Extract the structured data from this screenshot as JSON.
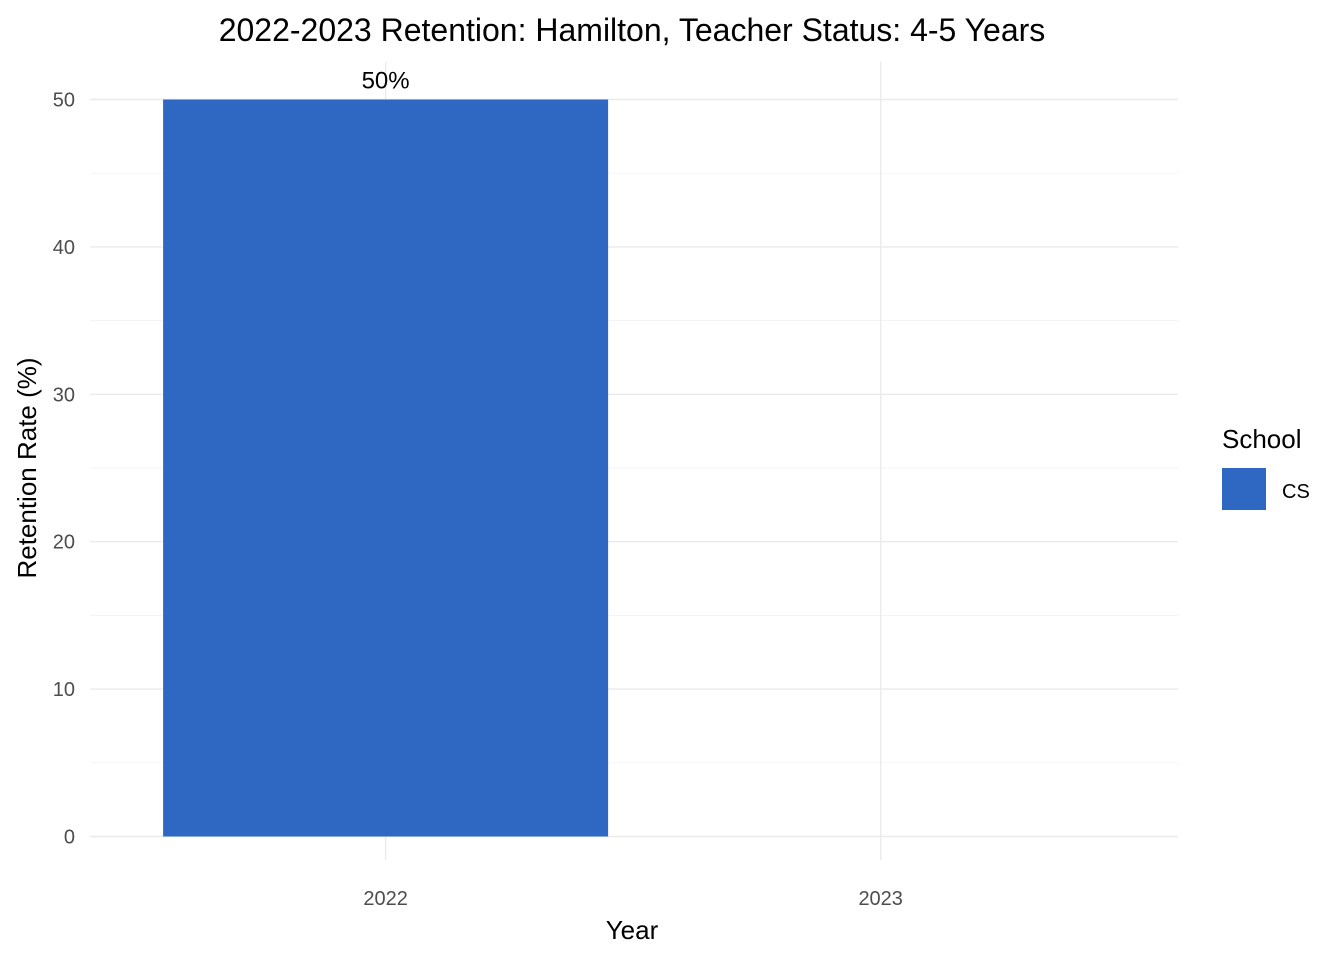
{
  "chart_data": {
    "type": "bar",
    "title": "2022-2023 Retention: Hamilton, Teacher Status: 4-5 Years",
    "xlabel": "Year",
    "ylabel": "Retention Rate (%)",
    "categories": [
      "2022",
      "2023"
    ],
    "series": [
      {
        "name": "CS",
        "values": [
          50,
          null
        ],
        "labels": [
          "50%",
          ""
        ]
      }
    ],
    "ylim": [
      0,
      52
    ],
    "yticks": [
      0,
      10,
      20,
      30,
      40,
      50
    ],
    "ytick_labels": [
      "0",
      "10",
      "20",
      "30",
      "40",
      "50"
    ],
    "grid": true,
    "legend": {
      "title": "School",
      "position": "right"
    },
    "colors": {
      "CS": "#2e68c3"
    }
  }
}
